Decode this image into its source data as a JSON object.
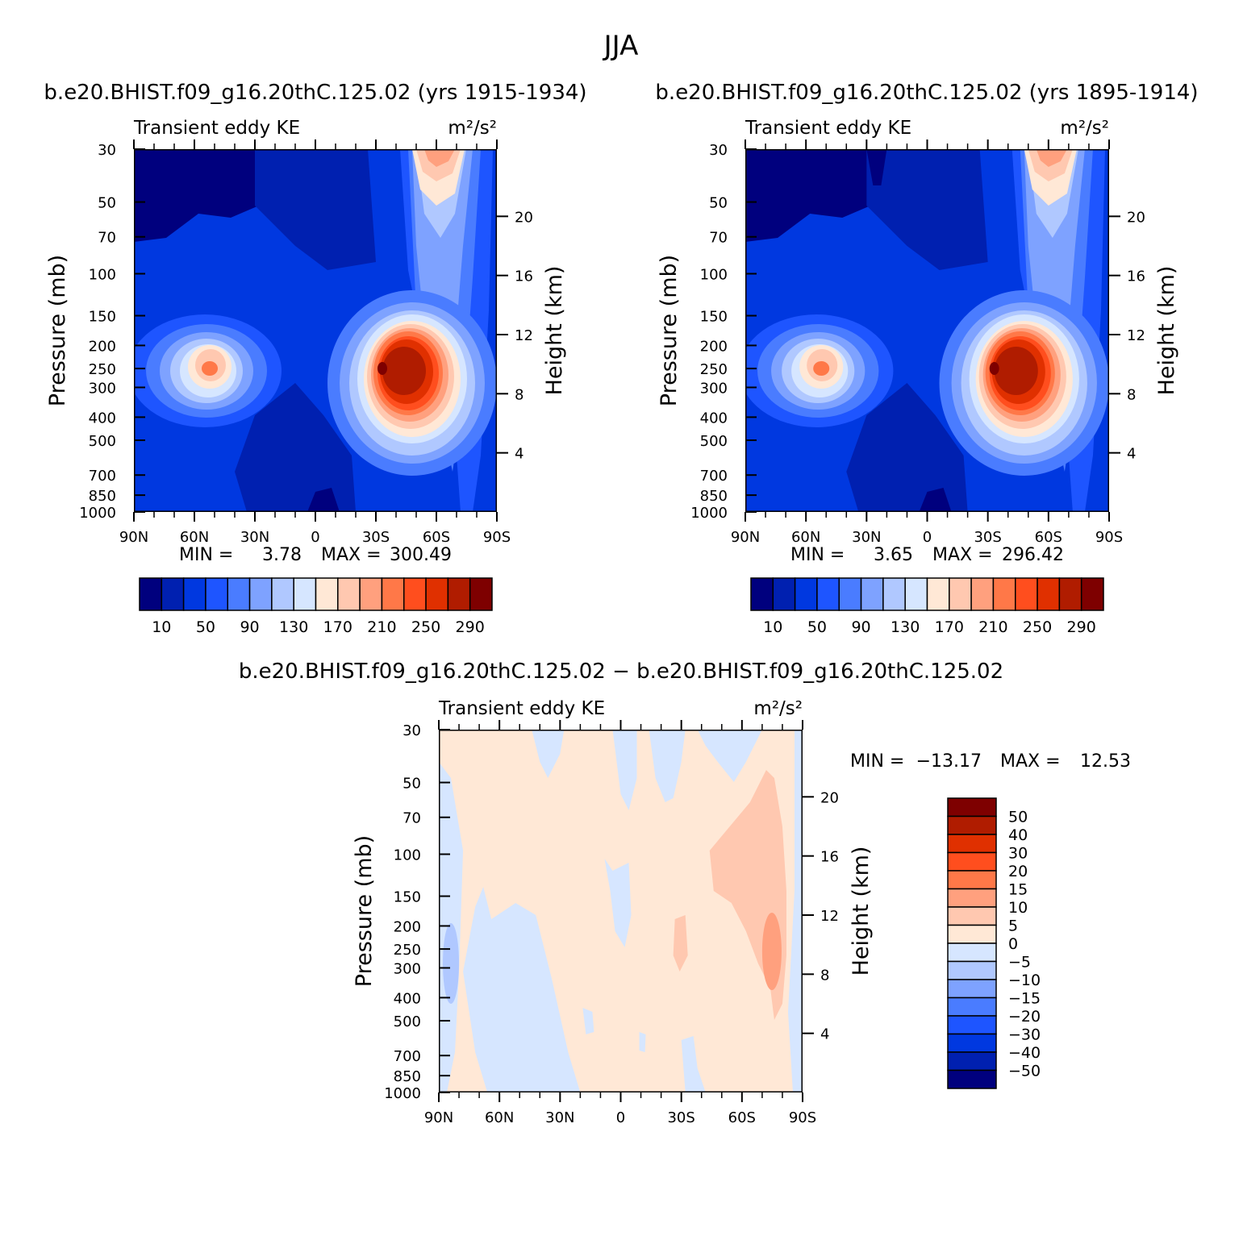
{
  "title": "JJA",
  "colors": {
    "abs_palette": [
      "#00007e",
      "#0020b0",
      "#0038e0",
      "#1e55ff",
      "#4a7cff",
      "#7ea2ff",
      "#b0c8ff",
      "#d6e6ff",
      "#ffe8d6",
      "#ffc8b0",
      "#ffa07e",
      "#ff7848",
      "#ff4e1e",
      "#e03000",
      "#b01c00",
      "#7e0000"
    ],
    "diff_palette": [
      "#00007e",
      "#0020b0",
      "#0038e0",
      "#1e55ff",
      "#4a7cff",
      "#7ea2ff",
      "#b0c8ff",
      "#d6e6ff",
      "#ffe8d6",
      "#ffc8b0",
      "#ffa07e",
      "#ff7848",
      "#ff4e1e",
      "#e03000",
      "#b01c00",
      "#7e0000"
    ]
  },
  "chart_data": [
    {
      "type": "heatmap",
      "case_title": "b.e20.BHIST.f09_g16.20thC.125.02 (yrs 1915-1934)",
      "variable": "Transient eddy KE",
      "units": "m²/s²",
      "ylabel": "Pressure (mb)",
      "y2label": "Height (km)",
      "yticks": [
        "30",
        "50",
        "70",
        "100",
        "150",
        "200",
        "250",
        "300",
        "400",
        "500",
        "700",
        "850",
        "1000"
      ],
      "y2ticks": [
        "20",
        "16",
        "12",
        "8",
        "4"
      ],
      "xticks": [
        "90N",
        "60N",
        "30N",
        "0",
        "30S",
        "60S",
        "90S"
      ],
      "stats": {
        "min_label": "MIN =",
        "min": "3.78",
        "max_label": "MAX =",
        "max": "300.49"
      },
      "colorbar_labels": [
        "10",
        "50",
        "90",
        "130",
        "170",
        "210",
        "250",
        "290"
      ],
      "features": [
        {
          "lat": -50,
          "p": 270,
          "peak": 300.49
        },
        {
          "lat": 48,
          "p": 250,
          "peak": 230
        }
      ]
    },
    {
      "type": "heatmap",
      "case_title": "b.e20.BHIST.f09_g16.20thC.125.02 (yrs 1895-1914)",
      "variable": "Transient eddy KE",
      "units": "m²/s²",
      "ylabel": "Pressure (mb)",
      "y2label": "Height (km)",
      "yticks": [
        "30",
        "50",
        "70",
        "100",
        "150",
        "200",
        "250",
        "300",
        "400",
        "500",
        "700",
        "850",
        "1000"
      ],
      "y2ticks": [
        "20",
        "16",
        "12",
        "8",
        "4"
      ],
      "xticks": [
        "90N",
        "60N",
        "30N",
        "0",
        "30S",
        "60S",
        "90S"
      ],
      "stats": {
        "min_label": "MIN =",
        "min": "3.65",
        "max_label": "MAX =",
        "max": "296.42"
      },
      "colorbar_labels": [
        "10",
        "50",
        "90",
        "130",
        "170",
        "210",
        "250",
        "290"
      ],
      "features": [
        {
          "lat": -50,
          "p": 270,
          "peak": 296.42
        },
        {
          "lat": 48,
          "p": 250,
          "peak": 228
        }
      ]
    },
    {
      "type": "heatmap",
      "case_title": "b.e20.BHIST.f09_g16.20thC.125.02 − b.e20.BHIST.f09_g16.20thC.125.02",
      "variable": "Transient eddy KE",
      "units": "m²/s²",
      "ylabel": "Pressure (mb)",
      "y2label": "Height (km)",
      "yticks": [
        "30",
        "50",
        "70",
        "100",
        "150",
        "200",
        "250",
        "300",
        "400",
        "500",
        "700",
        "850",
        "1000"
      ],
      "y2ticks": [
        "20",
        "16",
        "12",
        "8",
        "4"
      ],
      "xticks": [
        "90N",
        "60N",
        "30N",
        "0",
        "30S",
        "60S",
        "90S"
      ],
      "stats": {
        "min_label": "MIN =",
        "min": "−13.17",
        "max_label": "MAX =",
        "max": "12.53"
      },
      "colorbar_labels": [
        "50",
        "40",
        "30",
        "20",
        "15",
        "10",
        "5",
        "0",
        "−5",
        "−10",
        "−15",
        "−20",
        "−30",
        "−40",
        "−50"
      ]
    }
  ]
}
